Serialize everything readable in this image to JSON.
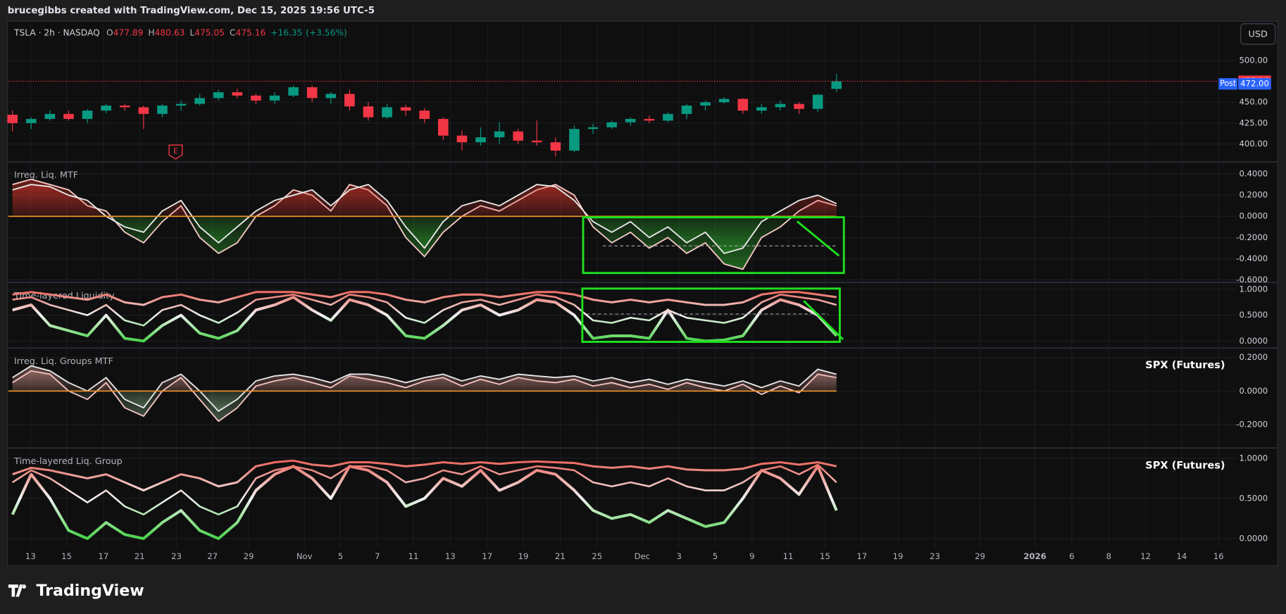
{
  "header": {
    "credit": "brucegibbs created with TradingView.com, Dec 15, 2025 19:56 UTC-5"
  },
  "toolbar": {
    "currency": "USD"
  },
  "footer": {
    "brand": "TradingView"
  },
  "x_axis_labels": [
    "13",
    "15",
    "17",
    "21",
    "23",
    "27",
    "29",
    "Nov",
    "5",
    "7",
    "11",
    "13",
    "17",
    "19",
    "21",
    "25",
    "Dec",
    "3",
    "5",
    "9",
    "11",
    "15",
    "17",
    "19",
    "23",
    "29",
    "2026",
    "6",
    "8",
    "12",
    "14",
    "16"
  ],
  "chart_data": [
    {
      "type": "candlestick",
      "legend": {
        "symbol": "TSLA · 2h · NASDAQ",
        "ohlc": [
          {
            "key": "O",
            "value": 477.89
          },
          {
            "key": "H",
            "value": 480.63
          },
          {
            "key": "L",
            "value": 475.05
          },
          {
            "key": "C",
            "value": 475.16
          }
        ],
        "change": {
          "value": 16.35,
          "label": "+16.35"
        },
        "change_pct": {
          "value": 3.56,
          "label": "(+3.56%)"
        }
      },
      "open": [
        435,
        425,
        430,
        436,
        430,
        440,
        446,
        444,
        436,
        446,
        448,
        455,
        462,
        458,
        452,
        458,
        468,
        455,
        460,
        445,
        432,
        444,
        440,
        430,
        410,
        402,
        408,
        415,
        404,
        402,
        392,
        418,
        420,
        426,
        430,
        428,
        436,
        446,
        450,
        454,
        440,
        444,
        448,
        442,
        466
      ],
      "high": [
        440,
        432,
        440,
        440,
        442,
        448,
        448,
        446,
        448,
        452,
        460,
        465,
        466,
        460,
        462,
        470,
        470,
        462,
        465,
        450,
        448,
        447,
        443,
        432,
        416,
        420,
        426,
        418,
        428,
        408,
        422,
        424,
        428,
        432,
        434,
        438,
        448,
        452,
        456,
        455,
        448,
        452,
        450,
        460,
        484
      ],
      "low": [
        415,
        418,
        428,
        428,
        425,
        437,
        440,
        418,
        432,
        440,
        446,
        452,
        455,
        448,
        448,
        456,
        450,
        448,
        440,
        428,
        430,
        434,
        425,
        405,
        392,
        398,
        400,
        400,
        398,
        385,
        390,
        412,
        418,
        422,
        425,
        426,
        430,
        440,
        448,
        436,
        436,
        440,
        436,
        438,
        462
      ],
      "close": [
        425,
        430,
        436,
        430,
        440,
        446,
        444,
        436,
        446,
        448,
        455,
        462,
        458,
        452,
        458,
        468,
        455,
        460,
        445,
        432,
        444,
        440,
        430,
        410,
        402,
        408,
        415,
        404,
        402,
        392,
        418,
        420,
        426,
        430,
        428,
        436,
        446,
        450,
        454,
        440,
        444,
        448,
        442,
        459,
        475.16
      ],
      "up_color": "#089981",
      "down_color": "#f23645",
      "last_price": 475.16,
      "post_market": {
        "label": "Post",
        "price": {
          "value": 472,
          "label": "472.00"
        },
        "color": "#2962ff"
      },
      "annotations": [
        "E"
      ],
      "ylim": [
        379,
        546
      ],
      "yticks": [
        {
          "value": 400,
          "label": "400.00"
        },
        {
          "value": 425,
          "label": "425.00"
        },
        {
          "value": 450,
          "label": "450.00"
        },
        {
          "value": 500,
          "label": "500.00"
        }
      ],
      "grid": true
    },
    {
      "type": "area",
      "title": "Irreg. Liq. MTF",
      "series": [
        {
          "color": "#f4c7c3",
          "values": [
            0.3,
            0.35,
            0.3,
            0.25,
            0.1,
            0.05,
            -0.15,
            -0.25,
            -0.05,
            0.1,
            -0.2,
            -0.35,
            -0.25,
            0.0,
            0.1,
            0.25,
            0.2,
            0.05,
            0.3,
            0.25,
            0.1,
            -0.2,
            -0.38,
            -0.15,
            0.0,
            0.1,
            0.05,
            0.15,
            0.25,
            0.3,
            0.2,
            -0.1,
            -0.25,
            -0.15,
            -0.3,
            -0.2,
            -0.35,
            -0.25,
            -0.45,
            -0.5,
            -0.2,
            -0.1,
            0.05,
            0.15,
            0.1
          ]
        },
        {
          "color": "#e8e8e8",
          "values": [
            0.25,
            0.3,
            0.28,
            0.2,
            0.15,
            0.0,
            -0.1,
            -0.15,
            0.05,
            0.15,
            -0.1,
            -0.25,
            -0.1,
            0.05,
            0.15,
            0.2,
            0.25,
            0.1,
            0.25,
            0.3,
            0.15,
            -0.1,
            -0.3,
            -0.05,
            0.1,
            0.15,
            0.1,
            0.2,
            0.3,
            0.28,
            0.15,
            -0.05,
            -0.15,
            -0.05,
            -0.2,
            -0.1,
            -0.25,
            -0.15,
            -0.35,
            -0.3,
            -0.05,
            0.05,
            0.15,
            0.2,
            0.12
          ]
        }
      ],
      "fill_colors": [
        "#e8372b",
        "#2fb82f"
      ],
      "zero_line_color": "#e8902a",
      "ylim": [
        -0.62,
        0.51
      ],
      "yticks": [
        {
          "value": -0.6,
          "label": "-0.6000"
        },
        {
          "value": -0.4,
          "label": "-0.4000"
        },
        {
          "value": -0.2,
          "label": "-0.2000"
        },
        {
          "value": 0,
          "label": "0.0000"
        },
        {
          "value": 0.2,
          "label": "0.2000"
        },
        {
          "value": 0.4,
          "label": "0.4000"
        }
      ],
      "grid": true
    },
    {
      "type": "line",
      "title": "Time-layered Liquidity",
      "series": [
        {
          "values": [
            0.9,
            0.95,
            0.9,
            0.85,
            0.8,
            0.9,
            0.75,
            0.7,
            0.85,
            0.9,
            0.8,
            0.75,
            0.85,
            0.95,
            0.95,
            0.95,
            0.9,
            0.85,
            0.95,
            0.95,
            0.9,
            0.8,
            0.75,
            0.85,
            0.9,
            0.9,
            0.85,
            0.9,
            0.95,
            0.95,
            0.9,
            0.8,
            0.75,
            0.8,
            0.75,
            0.8,
            0.75,
            0.7,
            0.7,
            0.75,
            0.9,
            0.95,
            0.95,
            0.9,
            0.85
          ]
        },
        {
          "values": [
            0.8,
            0.85,
            0.7,
            0.6,
            0.5,
            0.7,
            0.4,
            0.3,
            0.6,
            0.7,
            0.5,
            0.35,
            0.55,
            0.8,
            0.85,
            0.9,
            0.8,
            0.7,
            0.9,
            0.85,
            0.75,
            0.45,
            0.35,
            0.6,
            0.75,
            0.8,
            0.7,
            0.8,
            0.9,
            0.85,
            0.7,
            0.4,
            0.35,
            0.45,
            0.4,
            0.6,
            0.45,
            0.4,
            0.35,
            0.45,
            0.75,
            0.9,
            0.85,
            0.8,
            0.7
          ]
        },
        {
          "values": [
            0.6,
            0.7,
            0.3,
            0.2,
            0.1,
            0.5,
            0.05,
            0.0,
            0.3,
            0.5,
            0.15,
            0.05,
            0.2,
            0.6,
            0.7,
            0.85,
            0.6,
            0.4,
            0.8,
            0.7,
            0.5,
            0.1,
            0.05,
            0.3,
            0.6,
            0.7,
            0.5,
            0.6,
            0.8,
            0.75,
            0.5,
            0.05,
            0.1,
            0.1,
            0.05,
            0.6,
            0.05,
            0.0,
            0.02,
            0.1,
            0.6,
            0.8,
            0.7,
            0.5,
            0.1
          ]
        }
      ],
      "gradient": [
        "#22cc22",
        "#f2f2f2",
        "#e8372b"
      ],
      "ylim": [
        -0.127,
        1.127
      ],
      "yticks": [
        {
          "value": 0,
          "label": "0.0000"
        },
        {
          "value": 0.5,
          "label": "0.5000"
        },
        {
          "value": 1,
          "label": "1.0000"
        }
      ],
      "grid": true
    },
    {
      "type": "area",
      "title": "Irreg. Liq. Groups MTF",
      "subtitle": "SPX (Futures)",
      "series": [
        {
          "color": "#f4c7c3",
          "values": [
            0.05,
            0.12,
            0.1,
            0.0,
            -0.05,
            0.05,
            -0.1,
            -0.15,
            0.0,
            0.08,
            -0.05,
            -0.18,
            -0.1,
            0.03,
            0.06,
            0.08,
            0.05,
            0.02,
            0.09,
            0.07,
            0.05,
            0.02,
            0.06,
            0.08,
            0.03,
            0.07,
            0.04,
            0.08,
            0.06,
            0.05,
            0.07,
            0.03,
            0.05,
            0.02,
            0.04,
            0.01,
            0.05,
            0.02,
            0.0,
            0.04,
            -0.02,
            0.03,
            -0.01,
            0.1,
            0.08
          ]
        },
        {
          "color": "#e8e8e8",
          "values": [
            0.08,
            0.15,
            0.12,
            0.05,
            0.0,
            0.08,
            -0.05,
            -0.1,
            0.05,
            0.1,
            0.0,
            -0.12,
            -0.05,
            0.06,
            0.09,
            0.1,
            0.08,
            0.05,
            0.1,
            0.1,
            0.08,
            0.05,
            0.08,
            0.1,
            0.06,
            0.09,
            0.07,
            0.1,
            0.09,
            0.08,
            0.09,
            0.06,
            0.08,
            0.05,
            0.07,
            0.04,
            0.07,
            0.05,
            0.03,
            0.06,
            0.02,
            0.06,
            0.03,
            0.13,
            0.1
          ]
        }
      ],
      "fill_colors": [
        "#f0a9a0",
        "#9fd49f"
      ],
      "zero_line_color": "#e8902a",
      "ylim": [
        -0.337,
        0.254
      ],
      "yticks": [
        {
          "value": -0.2,
          "label": "-0.2000"
        },
        {
          "value": 0,
          "label": "0.0000"
        },
        {
          "value": 0.2,
          "label": "0.2000"
        }
      ],
      "grid": true
    },
    {
      "type": "line",
      "title": "Time-layered Liq. Group",
      "subtitle": "SPX (Futures)",
      "series": [
        {
          "values": [
            0.8,
            0.88,
            0.85,
            0.8,
            0.75,
            0.8,
            0.7,
            0.6,
            0.7,
            0.8,
            0.75,
            0.65,
            0.7,
            0.9,
            0.95,
            0.97,
            0.92,
            0.9,
            0.95,
            0.95,
            0.93,
            0.9,
            0.92,
            0.95,
            0.93,
            0.95,
            0.93,
            0.95,
            0.96,
            0.95,
            0.94,
            0.9,
            0.88,
            0.9,
            0.87,
            0.9,
            0.86,
            0.85,
            0.85,
            0.87,
            0.93,
            0.95,
            0.92,
            0.95,
            0.9
          ]
        },
        {
          "values": [
            0.7,
            0.85,
            0.75,
            0.6,
            0.45,
            0.6,
            0.4,
            0.3,
            0.45,
            0.6,
            0.4,
            0.3,
            0.4,
            0.75,
            0.85,
            0.9,
            0.85,
            0.75,
            0.9,
            0.9,
            0.85,
            0.7,
            0.75,
            0.85,
            0.8,
            0.9,
            0.8,
            0.85,
            0.9,
            0.88,
            0.85,
            0.7,
            0.65,
            0.7,
            0.65,
            0.75,
            0.65,
            0.6,
            0.6,
            0.7,
            0.85,
            0.9,
            0.8,
            0.92,
            0.7
          ]
        },
        {
          "values": [
            0.3,
            0.8,
            0.5,
            0.1,
            0.0,
            0.2,
            0.05,
            0.0,
            0.2,
            0.35,
            0.1,
            0.0,
            0.2,
            0.6,
            0.8,
            0.9,
            0.75,
            0.5,
            0.9,
            0.85,
            0.7,
            0.4,
            0.5,
            0.75,
            0.65,
            0.85,
            0.6,
            0.7,
            0.85,
            0.8,
            0.6,
            0.35,
            0.25,
            0.3,
            0.2,
            0.35,
            0.25,
            0.15,
            0.2,
            0.5,
            0.85,
            0.75,
            0.55,
            0.9,
            0.35
          ]
        }
      ],
      "gradient": [
        "#22cc22",
        "#f2f2f2",
        "#e8372b"
      ],
      "ylim": [
        -0.112,
        1.122
      ],
      "yticks": [
        {
          "value": 0,
          "label": "0.0000"
        },
        {
          "value": 0.5,
          "label": "0.5000"
        },
        {
          "value": 1,
          "label": "1.0000"
        }
      ],
      "grid": true
    }
  ]
}
